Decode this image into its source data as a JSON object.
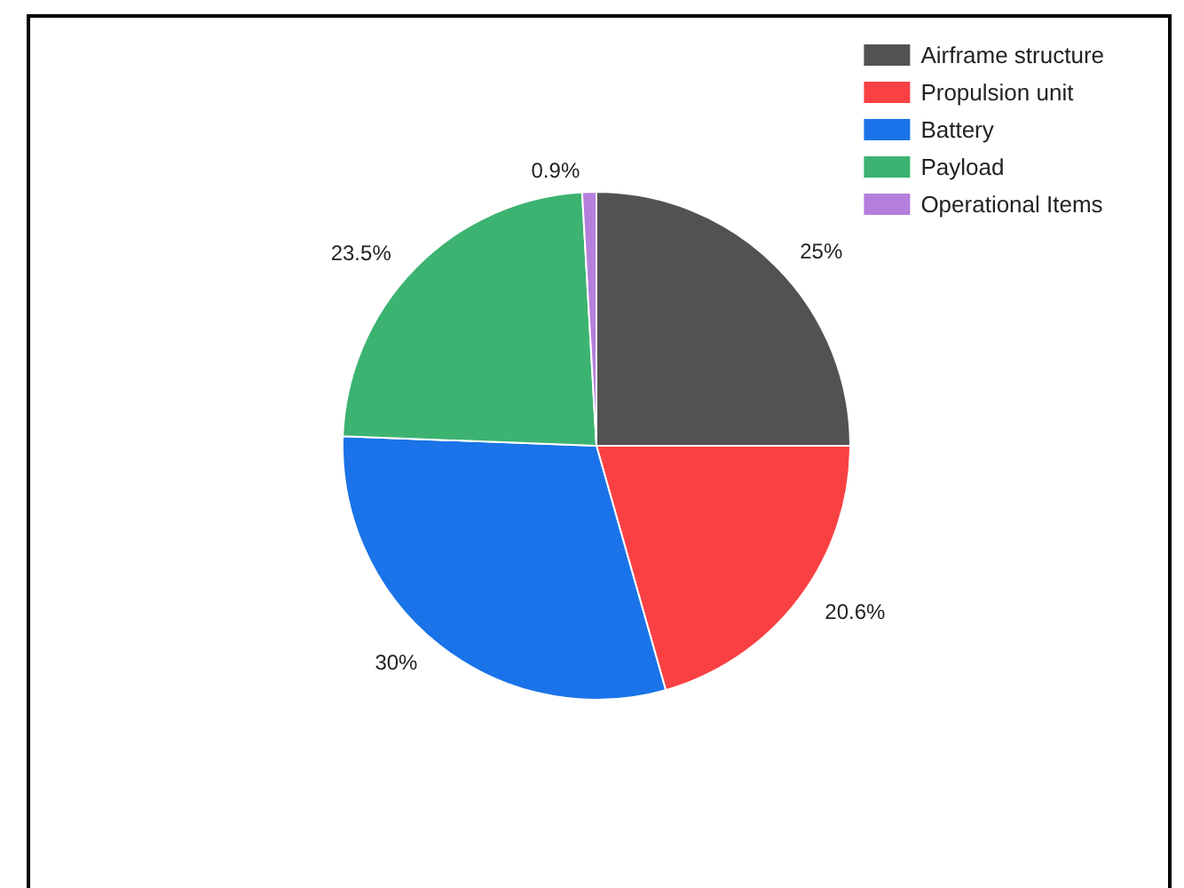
{
  "chart_data": {
    "type": "pie",
    "categories": [
      "Airframe structure",
      "Propulsion unit",
      "Battery",
      "Payload",
      "Operational Items"
    ],
    "values": [
      25,
      20.6,
      30,
      23.5,
      0.9
    ],
    "colors": [
      "#525252",
      "#f94144",
      "#1a73e8",
      "#3cb371",
      "#b57edc"
    ],
    "value_labels": [
      "25%",
      "20.6%",
      "30%",
      "23.5%",
      "0.9%"
    ],
    "legend": "top right"
  }
}
